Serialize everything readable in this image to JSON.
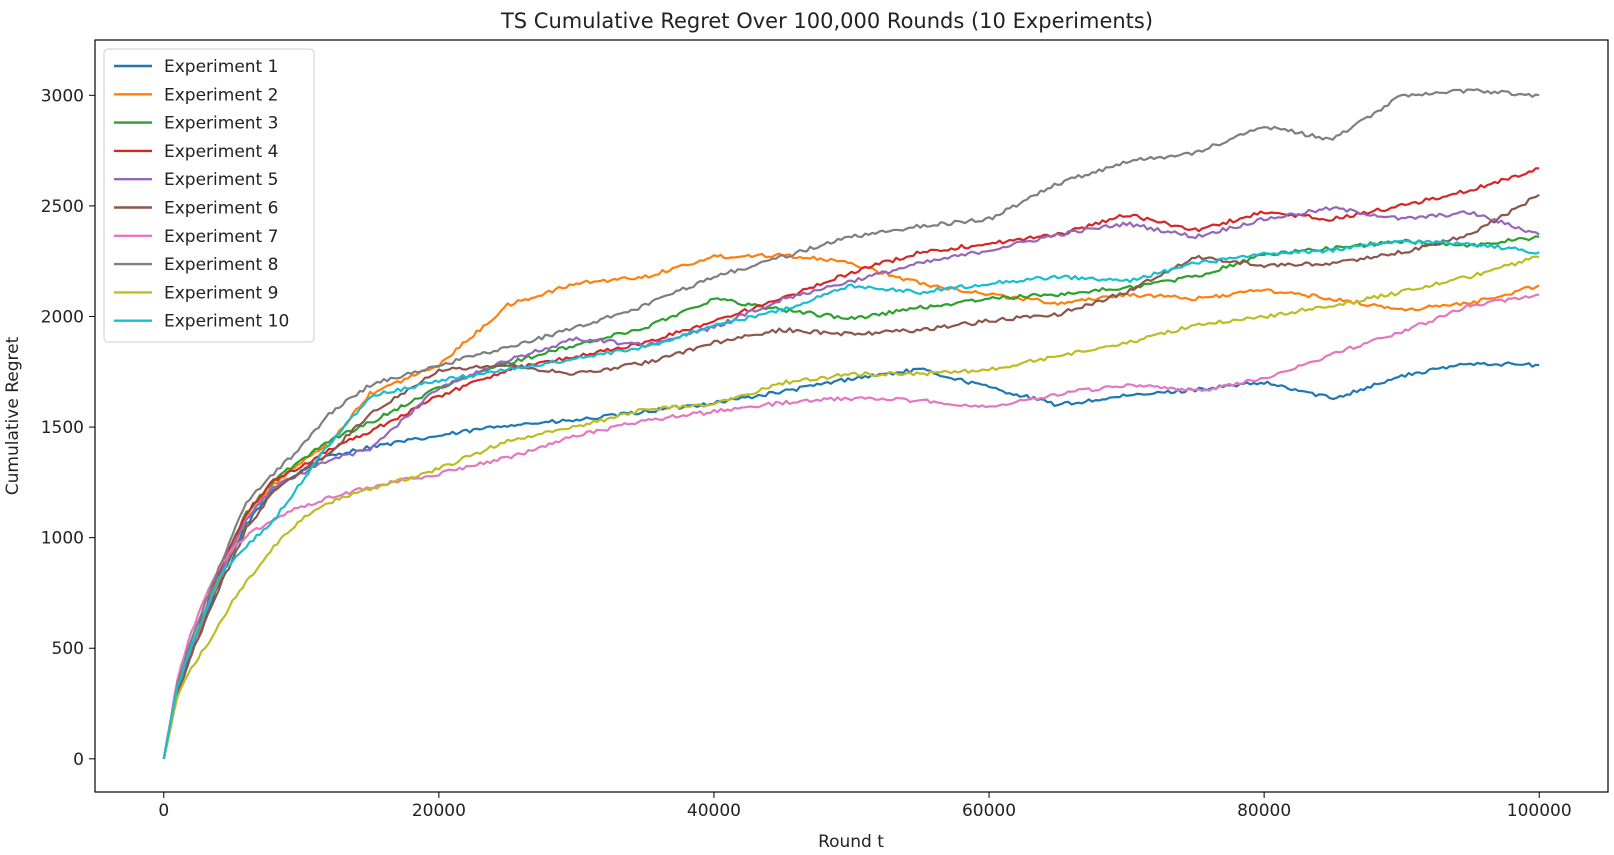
{
  "chart_data": {
    "type": "line",
    "title": "TS Cumulative Regret Over 100,000 Rounds (10 Experiments)",
    "xlabel": "Round t",
    "ylabel": "Cumulative Regret",
    "xlim": [
      -5000,
      105000
    ],
    "ylim": [
      -150,
      3250
    ],
    "xticks": [
      0,
      20000,
      40000,
      60000,
      80000,
      100000
    ],
    "xtick_labels": [
      "0",
      "20000",
      "40000",
      "60000",
      "80000",
      "100000"
    ],
    "yticks": [
      0,
      500,
      1000,
      1500,
      2000,
      2500,
      3000
    ],
    "ytick_labels": [
      "0",
      "500",
      "1000",
      "1500",
      "2000",
      "2500",
      "3000"
    ],
    "grid": false,
    "legend_position": "top-left",
    "x": [
      0,
      1000,
      2000,
      3000,
      4000,
      5000,
      6000,
      8000,
      10000,
      12000,
      15000,
      20000,
      25000,
      30000,
      35000,
      40000,
      45000,
      50000,
      55000,
      60000,
      65000,
      70000,
      75000,
      80000,
      85000,
      90000,
      95000,
      100000
    ],
    "series": [
      {
        "name": "Experiment 1",
        "color": "#1f77b4",
        "values": [
          0,
          300,
          470,
          630,
          790,
          930,
          1060,
          1220,
          1300,
          1370,
          1410,
          1460,
          1510,
          1530,
          1570,
          1610,
          1660,
          1720,
          1760,
          1680,
          1600,
          1640,
          1670,
          1700,
          1630,
          1730,
          1790,
          1780
        ]
      },
      {
        "name": "Experiment 2",
        "color": "#ff7f0e",
        "values": [
          0,
          320,
          500,
          650,
          810,
          950,
          1080,
          1240,
          1340,
          1420,
          1650,
          1780,
          2050,
          2150,
          2180,
          2270,
          2280,
          2240,
          2150,
          2100,
          2060,
          2100,
          2080,
          2120,
          2080,
          2030,
          2060,
          2140
        ]
      },
      {
        "name": "Experiment 3",
        "color": "#2ca02c",
        "values": [
          0,
          320,
          500,
          670,
          840,
          980,
          1110,
          1260,
          1350,
          1440,
          1520,
          1680,
          1790,
          1870,
          1950,
          2080,
          2030,
          1990,
          2040,
          2080,
          2100,
          2130,
          2180,
          2280,
          2310,
          2340,
          2320,
          2360
        ]
      },
      {
        "name": "Experiment 4",
        "color": "#d62728",
        "values": [
          0,
          320,
          510,
          670,
          840,
          980,
          1110,
          1260,
          1320,
          1400,
          1480,
          1640,
          1760,
          1820,
          1880,
          1980,
          2080,
          2200,
          2290,
          2330,
          2370,
          2460,
          2390,
          2470,
          2440,
          2500,
          2570,
          2670
        ]
      },
      {
        "name": "Experiment 5",
        "color": "#9467bd",
        "values": [
          0,
          320,
          500,
          660,
          820,
          960,
          1080,
          1230,
          1290,
          1350,
          1400,
          1680,
          1800,
          1900,
          1870,
          1950,
          2080,
          2160,
          2240,
          2300,
          2370,
          2420,
          2360,
          2440,
          2490,
          2440,
          2470,
          2370
        ]
      },
      {
        "name": "Experiment 6",
        "color": "#8c564b",
        "values": [
          0,
          300,
          470,
          620,
          770,
          900,
          1040,
          1210,
          1300,
          1380,
          1560,
          1760,
          1780,
          1740,
          1790,
          1880,
          1940,
          1920,
          1940,
          1980,
          2010,
          2110,
          2270,
          2230,
          2240,
          2290,
          2370,
          2550
        ]
      },
      {
        "name": "Experiment 7",
        "color": "#e377c2",
        "values": [
          0,
          360,
          570,
          730,
          860,
          950,
          1010,
          1080,
          1140,
          1180,
          1230,
          1290,
          1360,
          1460,
          1530,
          1570,
          1610,
          1630,
          1620,
          1590,
          1650,
          1690,
          1660,
          1720,
          1830,
          1930,
          2050,
          2100
        ]
      },
      {
        "name": "Experiment 8",
        "color": "#7f7f7f",
        "values": [
          0,
          340,
          540,
          700,
          860,
          1020,
          1160,
          1290,
          1410,
          1560,
          1690,
          1780,
          1860,
          1950,
          2050,
          2180,
          2270,
          2360,
          2410,
          2440,
          2600,
          2700,
          2740,
          2860,
          2800,
          3000,
          3020,
          3000
        ]
      },
      {
        "name": "Experiment 9",
        "color": "#bcbd22",
        "values": [
          0,
          280,
          410,
          500,
          610,
          710,
          800,
          960,
          1080,
          1160,
          1220,
          1310,
          1440,
          1500,
          1580,
          1600,
          1700,
          1740,
          1740,
          1760,
          1820,
          1880,
          1960,
          2000,
          2050,
          2110,
          2180,
          2270
        ]
      },
      {
        "name": "Experiment 10",
        "color": "#17becf",
        "values": [
          0,
          320,
          510,
          660,
          820,
          900,
          960,
          1080,
          1250,
          1420,
          1640,
          1710,
          1760,
          1810,
          1860,
          1960,
          2030,
          2140,
          2110,
          2150,
          2180,
          2160,
          2240,
          2280,
          2300,
          2340,
          2330,
          2290
        ]
      }
    ]
  }
}
